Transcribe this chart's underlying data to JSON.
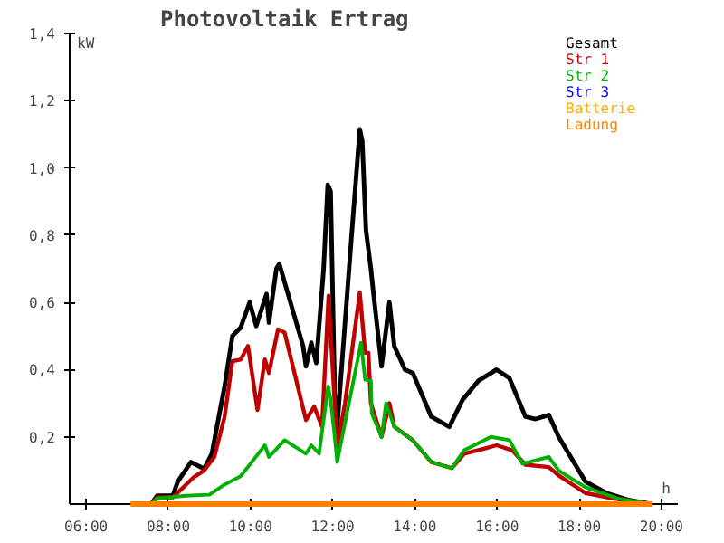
{
  "chart_data": {
    "type": "line",
    "title": "Photovoltaik Ertrag",
    "xlabel": "h",
    "ylabel": "kW",
    "xlim": [
      5.6,
      20.4
    ],
    "ylim": [
      0,
      1.4
    ],
    "xticks": [
      {
        "value": 6,
        "label": "06:00"
      },
      {
        "value": 8,
        "label": "08:00"
      },
      {
        "value": 10,
        "label": "10:00"
      },
      {
        "value": 12,
        "label": "12:00"
      },
      {
        "value": 14,
        "label": "14:00"
      },
      {
        "value": 16,
        "label": "16:00"
      },
      {
        "value": 18,
        "label": "18:00"
      },
      {
        "value": 20,
        "label": "20:00"
      }
    ],
    "yticks": [
      {
        "value": 0.2,
        "label": "0,2"
      },
      {
        "value": 0.4,
        "label": "0,4"
      },
      {
        "value": 0.6,
        "label": "0,6"
      },
      {
        "value": 0.8,
        "label": "0,8"
      },
      {
        "value": 1.0,
        "label": "1,0"
      },
      {
        "value": 1.2,
        "label": "1,2"
      },
      {
        "value": 1.4,
        "label": "1,4"
      }
    ],
    "grid": false,
    "legend": "top right",
    "marker": "none",
    "line_style": "solid",
    "series": [
      {
        "name": "Gesamt",
        "color": "#000000",
        "x": [
          7.58,
          7.73,
          8.11,
          8.23,
          8.55,
          8.87,
          9.06,
          9.37,
          9.56,
          9.76,
          9.98,
          10.14,
          10.39,
          10.45,
          10.63,
          10.7,
          11.28,
          11.35,
          11.48,
          11.6,
          11.78,
          11.88,
          11.95,
          12.05,
          12.11,
          12.43,
          12.66,
          12.72,
          12.81,
          12.93,
          12.99,
          13.19,
          13.38,
          13.5,
          13.76,
          13.95,
          14.4,
          14.84,
          15.16,
          15.55,
          15.99,
          16.3,
          16.69,
          16.94,
          17.26,
          17.5,
          18.15,
          18.66,
          19.17,
          19.75
        ],
        "values": [
          0,
          0.025,
          0.025,
          0.067,
          0.125,
          0.105,
          0.15,
          0.35,
          0.5,
          0.525,
          0.6,
          0.53,
          0.625,
          0.54,
          0.7,
          0.715,
          0.47,
          0.41,
          0.48,
          0.42,
          0.7,
          0.95,
          0.93,
          0.33,
          0.23,
          0.75,
          1.115,
          1.08,
          0.815,
          0.7,
          0.63,
          0.41,
          0.6,
          0.47,
          0.4,
          0.39,
          0.26,
          0.23,
          0.31,
          0.367,
          0.4,
          0.375,
          0.26,
          0.253,
          0.265,
          0.2,
          0.067,
          0.033,
          0.013,
          0
        ]
      },
      {
        "name": "Str 1",
        "color": "#c00000",
        "x": [
          7.58,
          7.73,
          8.11,
          8.62,
          8.87,
          9.12,
          9.37,
          9.56,
          9.76,
          9.94,
          10.17,
          10.35,
          10.45,
          10.67,
          10.83,
          11.35,
          11.55,
          11.74,
          11.9,
          12.11,
          12.3,
          12.66,
          12.79,
          12.87,
          12.93,
          13.19,
          13.38,
          13.5,
          13.95,
          14.4,
          14.9,
          15.2,
          15.7,
          15.99,
          16.37,
          16.69,
          17.26,
          17.5,
          18.15,
          18.8,
          19.75
        ],
        "values": [
          0,
          0.02,
          0.02,
          0.08,
          0.1,
          0.14,
          0.26,
          0.425,
          0.43,
          0.47,
          0.28,
          0.43,
          0.39,
          0.52,
          0.51,
          0.25,
          0.29,
          0.23,
          0.62,
          0.17,
          0.3,
          0.63,
          0.45,
          0.45,
          0.3,
          0.2,
          0.3,
          0.23,
          0.19,
          0.125,
          0.107,
          0.15,
          0.165,
          0.175,
          0.16,
          0.117,
          0.11,
          0.085,
          0.033,
          0.017,
          0
        ]
      },
      {
        "name": "Str 2",
        "color": "#00b000",
        "x": [
          7.58,
          7.73,
          8.42,
          9.0,
          9.37,
          9.76,
          10.14,
          10.35,
          10.45,
          10.83,
          11.35,
          11.48,
          11.67,
          11.89,
          11.95,
          12.05,
          12.11,
          12.69,
          12.79,
          12.93,
          12.95,
          13.19,
          13.3,
          13.5,
          13.95,
          14.4,
          14.9,
          15.2,
          15.85,
          16.3,
          16.62,
          17.26,
          17.5,
          18.15,
          18.93,
          19.75
        ],
        "values": [
          0,
          0.017,
          0.025,
          0.028,
          0.058,
          0.083,
          0.142,
          0.175,
          0.14,
          0.19,
          0.15,
          0.175,
          0.15,
          0.35,
          0.31,
          0.2,
          0.125,
          0.48,
          0.37,
          0.367,
          0.27,
          0.2,
          0.3,
          0.23,
          0.19,
          0.125,
          0.107,
          0.16,
          0.2,
          0.19,
          0.12,
          0.14,
          0.1,
          0.05,
          0.017,
          0
        ]
      },
      {
        "name": "Str 3",
        "color": "#0000ff"
      },
      {
        "name": "Batterie",
        "color": "#ffb000"
      },
      {
        "name": "Ladung",
        "color": "#ff8000",
        "x": [
          7.08,
          19.77
        ],
        "values": [
          0,
          0
        ]
      }
    ]
  }
}
